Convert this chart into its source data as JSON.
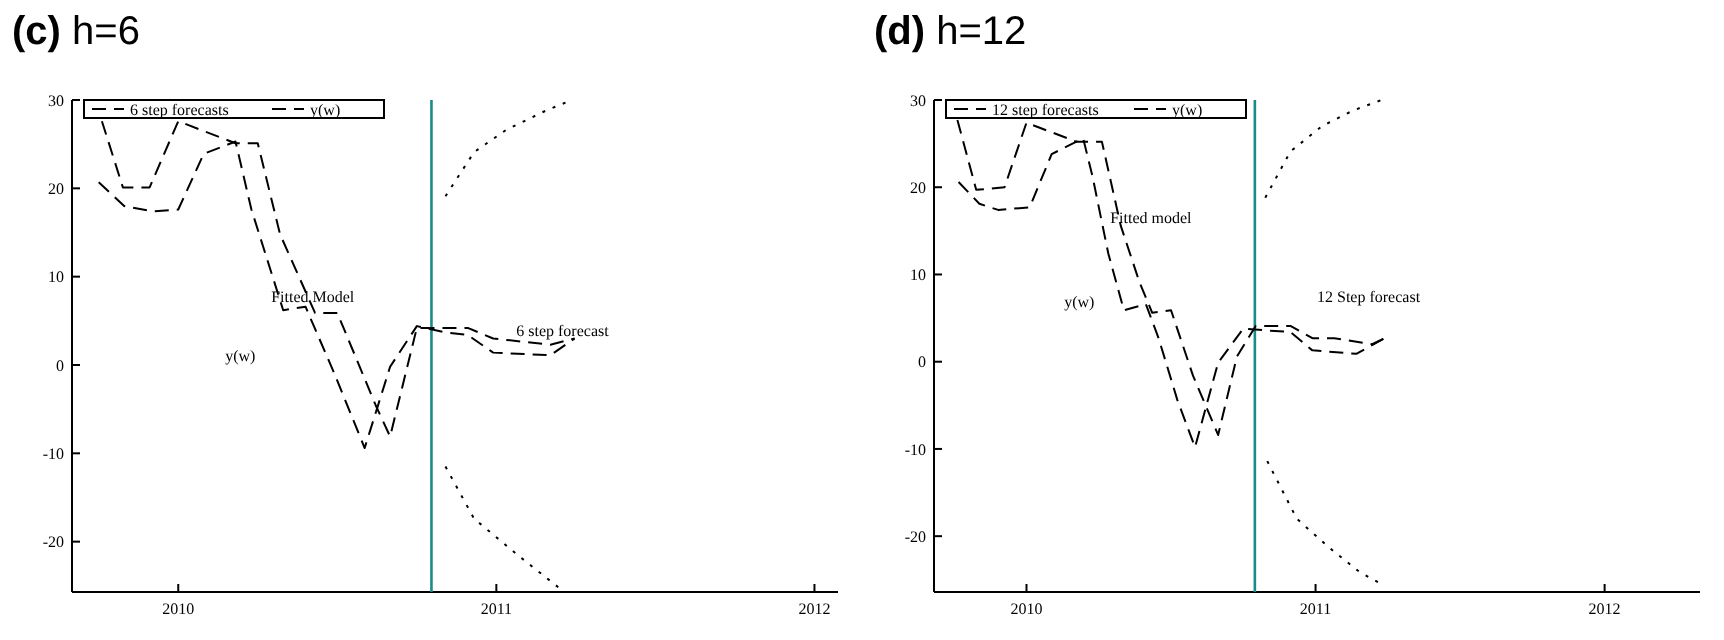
{
  "chart_data": [
    {
      "type": "line",
      "title": "(c) h=6",
      "xlim": [
        2009.666,
        2012.074
      ],
      "ylim": [
        -25.7,
        30
      ],
      "xticks": [
        2010,
        2011,
        2012
      ],
      "yticks": [
        -20,
        -10,
        0,
        10,
        20,
        30
      ],
      "grid": false,
      "legend": "top left",
      "ref_lines": [
        {
          "axis": "x",
          "value": 2010.796,
          "color": "#1a8a8a",
          "line_style": "solid"
        }
      ],
      "annotations": [
        "Fitted Model",
        "y(w)",
        "6 step forecast"
      ],
      "series": [
        {
          "name": "6 step forecasts",
          "color": "#000000",
          "line_style": "dashed",
          "x": [
            2009.76,
            2009.826,
            2009.91,
            2010,
            2010.18,
            2010.25,
            2010.32,
            2010.43,
            2010.5,
            2010.62,
            2010.666,
            2010.75,
            2010.91,
            2010.99,
            2011.17,
            2011.246
          ],
          "values": [
            27.6,
            20.1,
            20.1,
            27.6,
            25.1,
            25.1,
            14.8,
            5.9,
            5.9,
            -4.5,
            -8.1,
            4.2,
            4.2,
            3,
            2.3,
            3
          ]
        },
        {
          "name": "y(w)",
          "color": "#000000",
          "line_style": "dashed",
          "x": [
            2009.75,
            2009.83,
            2009.92,
            2010,
            2010.08,
            2010.18,
            2010.23,
            2010.33,
            2010.4,
            2010.49,
            2010.586,
            2010.666,
            2010.75,
            2010.84,
            2010.91,
            2010.99,
            2011.17,
            2011.246
          ],
          "values": [
            20.7,
            18,
            17.4,
            17.6,
            23.9,
            25.3,
            17.6,
            6.2,
            6.6,
            -0.9,
            -9.4,
            -0.2,
            4.4,
            3.7,
            3.4,
            1.4,
            1.1,
            3
          ]
        },
        {
          "color": "#000000",
          "line_style": "dotted",
          "x": [
            2010.84,
            2010.93,
            2011.03,
            2011.15,
            2011.23
          ],
          "values": [
            19.1,
            24.1,
            26.6,
            28.7,
            29.9
          ]
        },
        {
          "color": "#000000",
          "line_style": "dotted",
          "x": [
            2010.84,
            2010.93,
            2011.07,
            2011.21
          ],
          "values": [
            -11.5,
            -17.4,
            -21.6,
            -25.6
          ]
        }
      ]
    },
    {
      "type": "line",
      "title": "(d) h=12",
      "xlim": [
        2009.68,
        2012.33
      ],
      "ylim": [
        -26.4,
        30
      ],
      "xticks": [
        2010,
        2011,
        2012
      ],
      "yticks": [
        -20,
        -10,
        0,
        10,
        20,
        30
      ],
      "grid": false,
      "legend": "top left",
      "ref_lines": [
        {
          "axis": "x",
          "value": 2010.79,
          "color": "#1a8a8a",
          "line_style": "solid"
        }
      ],
      "annotations": [
        "Fitted model",
        "y(w)",
        "12 Step forecast"
      ],
      "series": [
        {
          "name": "12 step forecasts",
          "color": "#000000",
          "line_style": "dashed",
          "x": [
            2009.761,
            2009.826,
            2009.924,
            2010,
            2010.174,
            2010.261,
            2010.326,
            2010.391,
            2010.435,
            2010.5,
            2010.576,
            2010.663,
            2010.728,
            2010.793,
            2010.913,
            2010.989,
            2011.065,
            2011.196,
            2011.239
          ],
          "values": [
            27.7,
            19.7,
            20,
            27.4,
            25.2,
            25.2,
            15.6,
            9.1,
            5.6,
            5.9,
            -1.6,
            -8.4,
            0.6,
            4.1,
            4.1,
            2.7,
            2.7,
            2,
            2.7
          ]
        },
        {
          "name": "y(w)",
          "color": "#000000",
          "line_style": "dashed",
          "x": [
            2009.765,
            2009.837,
            2009.902,
            2010.011,
            2010.087,
            2010.196,
            2010.228,
            2010.283,
            2010.337,
            2010.413,
            2010.457,
            2010.522,
            2010.583,
            2010.663,
            2010.75,
            2010.826,
            2010.913,
            2010.989,
            2011.141,
            2011.239
          ],
          "values": [
            20.6,
            18.1,
            17.4,
            17.7,
            23.8,
            25.6,
            21.3,
            12.4,
            5.9,
            6.6,
            2.7,
            -4.4,
            -9.8,
            -0.1,
            3.8,
            3.6,
            3.4,
            1.3,
            0.9,
            2.7
          ]
        },
        {
          "color": "#000000",
          "line_style": "dotted",
          "x": [
            2010.826,
            2010.913,
            2011.022,
            2011.13,
            2011.228
          ],
          "values": [
            18.8,
            24.1,
            27,
            28.8,
            30
          ]
        },
        {
          "color": "#000000",
          "line_style": "dotted",
          "x": [
            2010.833,
            2010.935,
            2011.043,
            2011.152,
            2011.239
          ],
          "values": [
            -11.4,
            -18,
            -21.2,
            -24.1,
            -25.7
          ]
        }
      ]
    }
  ]
}
